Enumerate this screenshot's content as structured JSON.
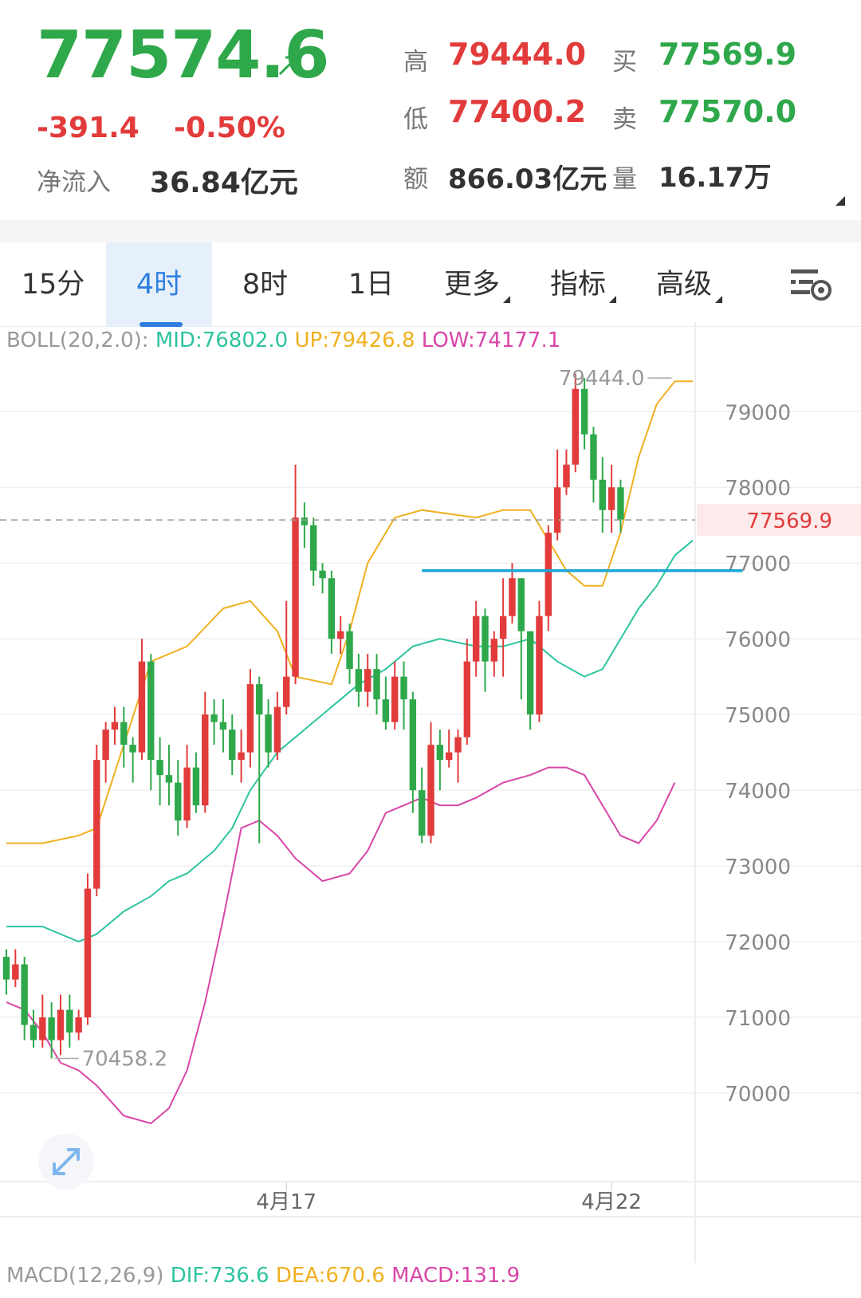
{
  "quote": {
    "last_price": "77574.6",
    "change": "-391.4",
    "change_pct": "-0.50%",
    "net_inflow_label": "净流入",
    "net_inflow": "36.84亿元",
    "high_label": "高",
    "high": "79444.0",
    "low_label": "低",
    "low": "77400.2",
    "amount_label": "额",
    "amount": "866.03亿元",
    "bid_label": "买",
    "bid": "77569.9",
    "ask_label": "卖",
    "ask": "77570.0",
    "volume_label": "量",
    "volume": "16.17万"
  },
  "tabs": [
    {
      "label": "15分",
      "active": false
    },
    {
      "label": "4时",
      "active": true
    },
    {
      "label": "8时",
      "active": false
    },
    {
      "label": "1日",
      "active": false
    },
    {
      "label": "更多",
      "active": false,
      "dropdown": true
    },
    {
      "label": "指标",
      "active": false,
      "dropdown": true
    },
    {
      "label": "高级",
      "active": false,
      "dropdown": true
    }
  ],
  "icons": {
    "trend": "trend-up-arrow-icon",
    "settings": "chart-settings-icon",
    "expand": "expand-arrows-icon"
  },
  "colors": {
    "up": "#e23b3b",
    "down": "#2ea84a",
    "mid": "#2ec4a0",
    "upper": "#f0b020",
    "lower": "#d946a8",
    "hline": "#1aa7d8",
    "accent": "#2f7ee0"
  },
  "boll": {
    "prefix": "BOLL(20,2.0):",
    "mid": "MID:76802.0",
    "up": "UP:79426.8",
    "low": "LOW:74177.1"
  },
  "macd": {
    "prefix": "MACD(12,26,9)",
    "dif": "DIF:736.6",
    "dea": "DEA:670.6",
    "macd": "MACD:131.9"
  },
  "chart_data": {
    "type": "candlestick",
    "y_ticks": [
      79000,
      78000,
      77000,
      76000,
      75000,
      74000,
      73000,
      72000,
      71000,
      70000
    ],
    "y_tick_labels": [
      "79000",
      "78000",
      "77000",
      "76000",
      "75000",
      "74000",
      "73000",
      "72000",
      "71000",
      "70000"
    ],
    "x_labels": [
      {
        "label": "4月17",
        "index": 31
      },
      {
        "label": "4月22",
        "index": 67
      }
    ],
    "current_price": 77569.9,
    "current_price_label": "77569.9",
    "max_label": "79444.0",
    "max_value": 79444.0,
    "max_index": 74,
    "min_label": "70458.2",
    "min_value": 70458.2,
    "min_index": 5,
    "horizontal_line": 76900,
    "candles": [
      [
        71800,
        71500,
        71900,
        71300
      ],
      [
        71500,
        71700,
        71900,
        71400
      ],
      [
        71700,
        70900,
        71800,
        70700
      ],
      [
        70900,
        70700,
        71100,
        70600
      ],
      [
        70700,
        71000,
        71300,
        70600
      ],
      [
        71000,
        70700,
        71200,
        70458.2
      ],
      [
        70700,
        71100,
        71300,
        70500
      ],
      [
        71100,
        70800,
        71300,
        70600
      ],
      [
        70800,
        71000,
        71100,
        70700
      ],
      [
        71000,
        72700,
        72900,
        70900
      ],
      [
        72700,
        74400,
        74600,
        72600
      ],
      [
        74400,
        74800,
        74900,
        74100
      ],
      [
        74800,
        74900,
        75100,
        74600
      ],
      [
        74900,
        74600,
        75100,
        74300
      ],
      [
        74600,
        74500,
        74700,
        74100
      ],
      [
        74500,
        75700,
        76000,
        74400
      ],
      [
        75700,
        74400,
        75800,
        74000
      ],
      [
        74400,
        74200,
        74700,
        73800
      ],
      [
        74200,
        74100,
        74600,
        73800
      ],
      [
        74100,
        73600,
        74400,
        73400
      ],
      [
        73600,
        74300,
        74600,
        73500
      ],
      [
        74300,
        73800,
        74500,
        73700
      ],
      [
        73800,
        75000,
        75300,
        73700
      ],
      [
        75000,
        74900,
        75200,
        74600
      ],
      [
        74900,
        74800,
        75200,
        74500
      ],
      [
        74800,
        74400,
        75000,
        74200
      ],
      [
        74400,
        74500,
        74800,
        74100
      ],
      [
        74500,
        75400,
        75600,
        74300
      ],
      [
        75400,
        75000,
        75500,
        73300
      ],
      [
        75000,
        74500,
        75200,
        74300
      ],
      [
        74500,
        75100,
        75300,
        74400
      ],
      [
        75100,
        75500,
        76500,
        75000
      ],
      [
        75500,
        77600,
        78300,
        75400
      ],
      [
        77600,
        77500,
        77800,
        77200
      ],
      [
        77500,
        76900,
        77600,
        76700
      ],
      [
        76900,
        76800,
        77000,
        76600
      ],
      [
        76800,
        76000,
        76900,
        75800
      ],
      [
        76000,
        76100,
        76300,
        75800
      ],
      [
        76100,
        75600,
        76200,
        75400
      ],
      [
        75600,
        75300,
        75800,
        75100
      ],
      [
        75300,
        75600,
        75800,
        75100
      ],
      [
        75600,
        75200,
        75800,
        75000
      ],
      [
        75200,
        74900,
        75500,
        74800
      ],
      [
        74900,
        75500,
        75700,
        74800
      ],
      [
        75500,
        75200,
        75700,
        74800
      ],
      [
        75200,
        74000,
        75300,
        73700
      ],
      [
        74000,
        73400,
        74300,
        73300
      ],
      [
        73400,
        74600,
        74900,
        73300
      ],
      [
        74600,
        74400,
        74800,
        74000
      ],
      [
        74400,
        74500,
        74800,
        74300
      ],
      [
        74500,
        74700,
        74800,
        74100
      ],
      [
        74700,
        75700,
        76000,
        74600
      ],
      [
        75700,
        76300,
        76500,
        75500
      ],
      [
        76300,
        75700,
        76400,
        75300
      ],
      [
        75700,
        76000,
        76100,
        75500
      ],
      [
        76000,
        76300,
        76800,
        75500
      ],
      [
        76300,
        76800,
        77000,
        76200
      ],
      [
        76800,
        76100,
        76500,
        75200
      ],
      [
        76100,
        75000,
        76000,
        74800
      ],
      [
        75000,
        76300,
        76500,
        74900
      ],
      [
        76300,
        77400,
        77500,
        76100
      ],
      [
        77400,
        78000,
        78500,
        77300
      ],
      [
        78000,
        78300,
        78500,
        77900
      ],
      [
        78300,
        79300,
        79500,
        78200
      ],
      [
        79300,
        78700,
        79444,
        78500
      ],
      [
        78700,
        78100,
        78800,
        77800
      ],
      [
        78100,
        77700,
        78400,
        77400
      ],
      [
        77700,
        78000,
        78300,
        77400
      ],
      [
        78000,
        77574.6,
        78100,
        77400
      ]
    ],
    "upper_band": [
      [
        0,
        73300
      ],
      [
        4,
        73300
      ],
      [
        8,
        73400
      ],
      [
        10,
        73500
      ],
      [
        13,
        74600
      ],
      [
        16,
        75700
      ],
      [
        20,
        75900
      ],
      [
        24,
        76400
      ],
      [
        27,
        76500
      ],
      [
        30,
        76100
      ],
      [
        32,
        75500
      ],
      [
        36,
        75400
      ],
      [
        38,
        76100
      ],
      [
        40,
        77000
      ],
      [
        43,
        77600
      ],
      [
        46,
        77700
      ],
      [
        52,
        77600
      ],
      [
        55,
        77700
      ],
      [
        58,
        77700
      ],
      [
        60,
        77300
      ],
      [
        62,
        76900
      ],
      [
        64,
        76700
      ],
      [
        66,
        76700
      ],
      [
        68,
        77400
      ],
      [
        70,
        78400
      ],
      [
        72,
        79100
      ],
      [
        74,
        79400
      ],
      [
        76,
        79400
      ]
    ],
    "middle_band": [
      [
        0,
        72200
      ],
      [
        4,
        72200
      ],
      [
        8,
        72000
      ],
      [
        10,
        72100
      ],
      [
        13,
        72400
      ],
      [
        16,
        72600
      ],
      [
        18,
        72800
      ],
      [
        20,
        72900
      ],
      [
        23,
        73200
      ],
      [
        25,
        73500
      ],
      [
        27,
        74000
      ],
      [
        30,
        74500
      ],
      [
        33,
        74800
      ],
      [
        36,
        75100
      ],
      [
        39,
        75400
      ],
      [
        42,
        75600
      ],
      [
        45,
        75900
      ],
      [
        48,
        76000
      ],
      [
        52,
        75900
      ],
      [
        55,
        75900
      ],
      [
        58,
        76000
      ],
      [
        61,
        75700
      ],
      [
        64,
        75500
      ],
      [
        66,
        75600
      ],
      [
        68,
        76000
      ],
      [
        70,
        76400
      ],
      [
        72,
        76700
      ],
      [
        74,
        77100
      ],
      [
        76,
        77300
      ]
    ],
    "lower_band": [
      [
        0,
        71200
      ],
      [
        2,
        71100
      ],
      [
        4,
        70800
      ],
      [
        6,
        70400
      ],
      [
        8,
        70300
      ],
      [
        10,
        70100
      ],
      [
        13,
        69700
      ],
      [
        16,
        69600
      ],
      [
        18,
        69800
      ],
      [
        20,
        70300
      ],
      [
        22,
        71200
      ],
      [
        24,
        72300
      ],
      [
        26,
        73500
      ],
      [
        28,
        73600
      ],
      [
        30,
        73400
      ],
      [
        32,
        73100
      ],
      [
        35,
        72800
      ],
      [
        38,
        72900
      ],
      [
        40,
        73200
      ],
      [
        42,
        73700
      ],
      [
        44,
        73800
      ],
      [
        46,
        73900
      ],
      [
        48,
        73800
      ],
      [
        50,
        73800
      ],
      [
        52,
        73900
      ],
      [
        55,
        74100
      ],
      [
        58,
        74200
      ],
      [
        60,
        74300
      ],
      [
        62,
        74300
      ],
      [
        64,
        74200
      ],
      [
        66,
        73800
      ],
      [
        68,
        73400
      ],
      [
        70,
        73300
      ],
      [
        72,
        73600
      ],
      [
        74,
        74100
      ]
    ]
  }
}
